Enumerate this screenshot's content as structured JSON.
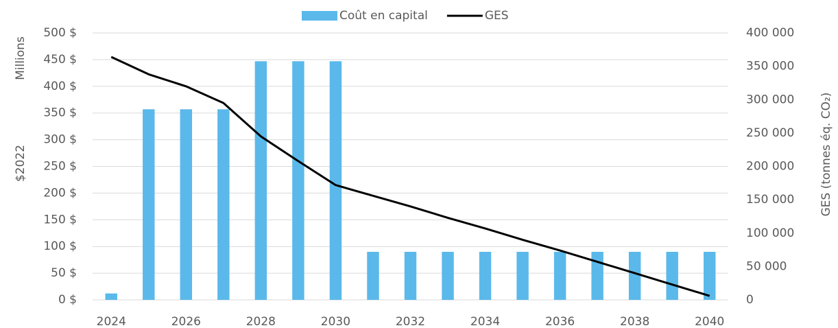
{
  "chart_data": {
    "type": "bar",
    "y_label_lines": [
      "$2022",
      "Millions"
    ],
    "y2_label": "GES (tonnes éq. CO₂)",
    "categories": [
      "2024",
      null,
      "2026",
      null,
      "2028",
      null,
      "2030",
      null,
      "2032",
      null,
      "2034",
      null,
      "2036",
      null,
      "2038",
      null,
      "2040"
    ],
    "series": [
      {
        "name": "Coût en capital",
        "type": "bar",
        "color": "#5ab9ea",
        "values": [
          12,
          357,
          357,
          357,
          447,
          447,
          447,
          90,
          90,
          90,
          90,
          90,
          90,
          90,
          90,
          90,
          90
        ]
      },
      {
        "name": "GES",
        "type": "line",
        "axis": "y2",
        "color": "#000000",
        "values": [
          364000,
          338000,
          320000,
          295000,
          245000,
          208000,
          172000,
          156000,
          140000,
          123000,
          107000,
          90000,
          74000,
          57000,
          40000,
          23000,
          6000
        ]
      }
    ],
    "ylim": [
      0,
      500
    ],
    "yticks": [
      {
        "value": 0,
        "label": "0 $"
      },
      {
        "value": 50,
        "label": "50 $"
      },
      {
        "value": 100,
        "label": "100 $"
      },
      {
        "value": 150,
        "label": "150 $"
      },
      {
        "value": 200,
        "label": "200 $"
      },
      {
        "value": 250,
        "label": "250 $"
      },
      {
        "value": 300,
        "label": "300 $"
      },
      {
        "value": 350,
        "label": "350 $"
      },
      {
        "value": 400,
        "label": "400 $"
      },
      {
        "value": 450,
        "label": "450 $"
      },
      {
        "value": 500,
        "label": "500 $"
      }
    ],
    "y2lim": [
      0,
      400000
    ],
    "y2ticks": [
      0,
      {
        "value": 50000,
        "label": "50 000"
      },
      {
        "value": 100000,
        "label": "100 000"
      },
      {
        "value": 150000,
        "label": "150 000"
      },
      {
        "value": 200000,
        "label": "200 000"
      },
      {
        "value": 250000,
        "label": "250 000"
      },
      {
        "value": 300000,
        "label": "300 000"
      },
      {
        "value": 350000,
        "label": "350 000"
      },
      {
        "value": 400000,
        "label": "400 000"
      }
    ],
    "grid": true,
    "legend": "top"
  }
}
